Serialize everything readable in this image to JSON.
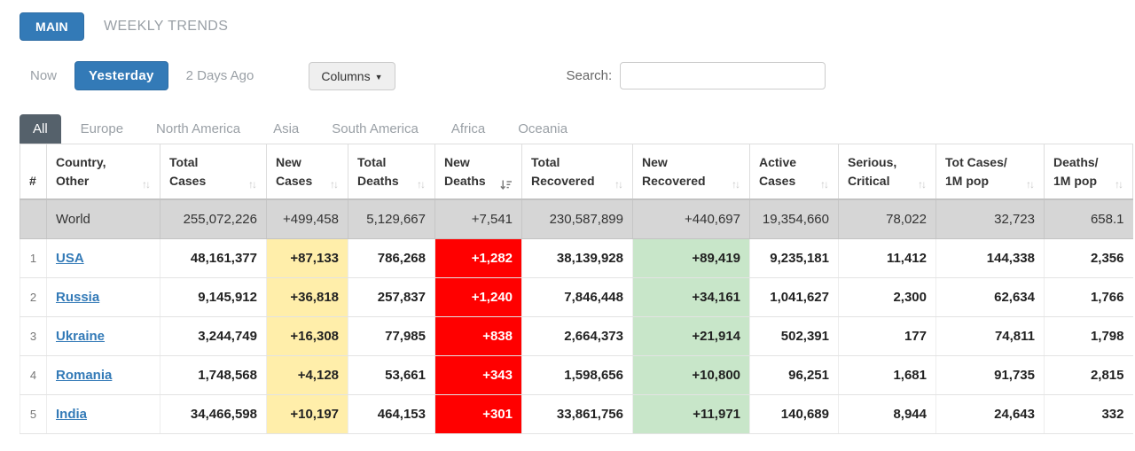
{
  "colors": {
    "accent_blue": "#337ab7",
    "new_cases_yellow": "#ffeeaa",
    "new_deaths_red": "#ff0000",
    "new_recovered_green": "#c8e6c9",
    "world_row_gray": "#d6d6d6",
    "active_region_tab": "#55616b"
  },
  "top_tabs": {
    "main": "MAIN",
    "weekly_trends": "WEEKLY TRENDS"
  },
  "controls": {
    "now": "Now",
    "yesterday": "Yesterday",
    "two_days_ago": "2 Days Ago",
    "columns": "Columns",
    "columns_caret_icon": "caret-down",
    "search_label": "Search:",
    "search_value": ""
  },
  "region_tabs": [
    {
      "label": "All",
      "active": true
    },
    {
      "label": "Europe",
      "active": false
    },
    {
      "label": "North America",
      "active": false
    },
    {
      "label": "Asia",
      "active": false
    },
    {
      "label": "South America",
      "active": false
    },
    {
      "label": "Africa",
      "active": false
    },
    {
      "label": "Oceania",
      "active": false
    }
  ],
  "table": {
    "columns": [
      {
        "key": "rank",
        "line1": "#",
        "line2": "",
        "sort": "no-sort"
      },
      {
        "key": "country",
        "line1": "Country,",
        "line2": "Other",
        "sort": "none"
      },
      {
        "key": "total-cases",
        "line1": "Total",
        "line2": "Cases",
        "sort": "none"
      },
      {
        "key": "new-cases",
        "line1": "New",
        "line2": "Cases",
        "sort": "none"
      },
      {
        "key": "total-deaths",
        "line1": "Total",
        "line2": "Deaths",
        "sort": "none"
      },
      {
        "key": "new-deaths",
        "line1": "New",
        "line2": "Deaths",
        "sort": "desc"
      },
      {
        "key": "total-recovered",
        "line1": "Total",
        "line2": "Recovered",
        "sort": "none"
      },
      {
        "key": "new-recovered",
        "line1": "New",
        "line2": "Recovered",
        "sort": "none"
      },
      {
        "key": "active-cases",
        "line1": "Active",
        "line2": "Cases",
        "sort": "none"
      },
      {
        "key": "serious-critical",
        "line1": "Serious,",
        "line2": "Critical",
        "sort": "none"
      },
      {
        "key": "tot-cases-1m",
        "line1": "Tot Cases/",
        "line2": "1M pop",
        "sort": "none"
      },
      {
        "key": "deaths-1m",
        "line1": "Deaths/",
        "line2": "1M pop",
        "sort": "none"
      }
    ],
    "world_row": {
      "rank": "",
      "name": "World",
      "values": [
        "255,072,226",
        "+499,458",
        "5,129,667",
        "+7,541",
        "230,587,899",
        "+440,697",
        "19,354,660",
        "78,022",
        "32,723",
        "658.1"
      ]
    },
    "rows": [
      {
        "rank": "1",
        "name": "USA",
        "values": [
          "48,161,377",
          "+87,133",
          "786,268",
          "+1,282",
          "38,139,928",
          "+89,419",
          "9,235,181",
          "11,412",
          "144,338",
          "2,356"
        ]
      },
      {
        "rank": "2",
        "name": "Russia",
        "values": [
          "9,145,912",
          "+36,818",
          "257,837",
          "+1,240",
          "7,846,448",
          "+34,161",
          "1,041,627",
          "2,300",
          "62,634",
          "1,766"
        ]
      },
      {
        "rank": "3",
        "name": "Ukraine",
        "values": [
          "3,244,749",
          "+16,308",
          "77,985",
          "+838",
          "2,664,373",
          "+21,914",
          "502,391",
          "177",
          "74,811",
          "1,798"
        ]
      },
      {
        "rank": "4",
        "name": "Romania",
        "values": [
          "1,748,568",
          "+4,128",
          "53,661",
          "+343",
          "1,598,656",
          "+10,800",
          "96,251",
          "1,681",
          "91,735",
          "2,815"
        ]
      },
      {
        "rank": "5",
        "name": "India",
        "values": [
          "34,466,598",
          "+10,197",
          "464,153",
          "+301",
          "33,861,756",
          "+11,971",
          "140,689",
          "8,944",
          "24,643",
          "332"
        ]
      }
    ]
  }
}
